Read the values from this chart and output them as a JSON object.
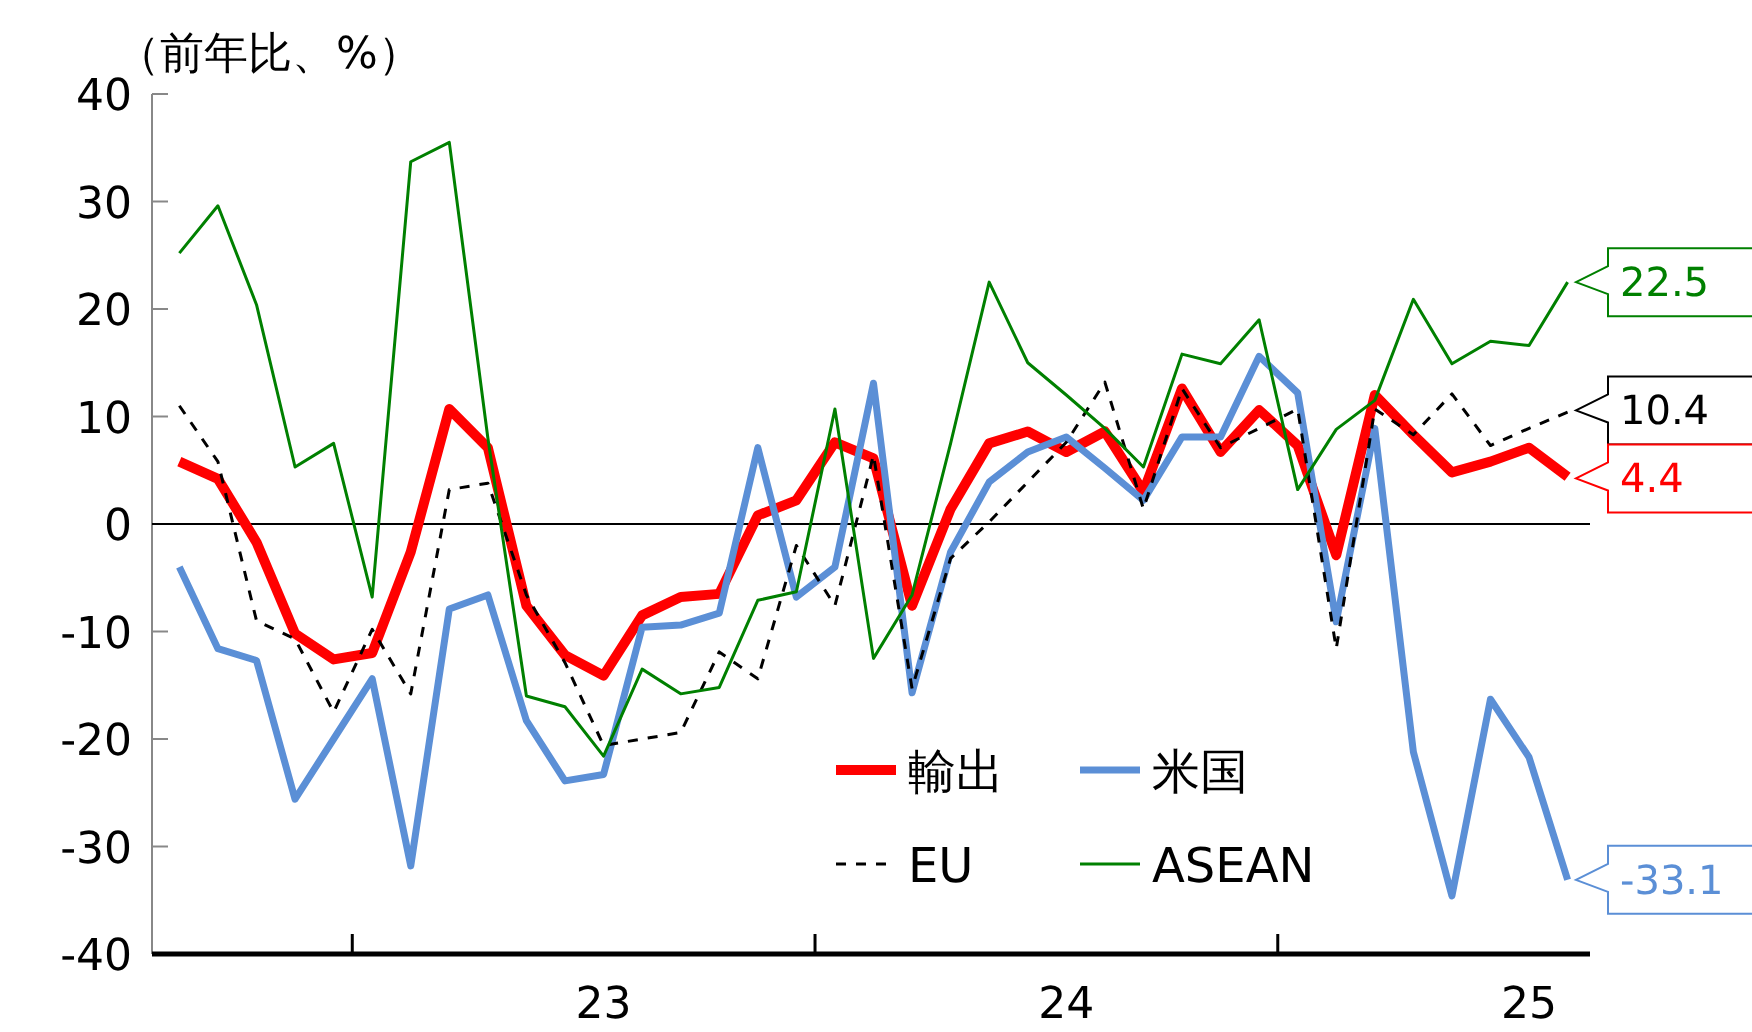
{
  "chart_data": {
    "type": "line",
    "ylabel": "（前年比、%）",
    "x": [
      "2022-08",
      "2022-09",
      "2022-10",
      "2022-11",
      "2022-12",
      "2023-01",
      "2023-02",
      "2023-03",
      "2023-04",
      "2023-05",
      "2023-06",
      "2023-07",
      "2023-08",
      "2023-09",
      "2023-10",
      "2023-11",
      "2023-12",
      "2024-01",
      "2024-02",
      "2024-03",
      "2024-04",
      "2024-05",
      "2024-06",
      "2024-07",
      "2024-08",
      "2024-09",
      "2024-10",
      "2024-11",
      "2024-12",
      "2025-01",
      "2025-02",
      "2025-03",
      "2025-04",
      "2025-05",
      "2025-06",
      "2025-07",
      "2025-08"
    ],
    "series": [
      {
        "name": "輸出",
        "color": "#ff0000",
        "line_style": "solid",
        "values": [
          5.8,
          4.2,
          -1.7,
          -10.2,
          -12.6,
          -12.0,
          -2.6,
          10.7,
          7.1,
          -7.6,
          -12.2,
          -14.1,
          -8.5,
          -6.8,
          -6.5,
          0.8,
          2.2,
          7.6,
          6.1,
          -7.6,
          1.4,
          7.5,
          8.6,
          6.7,
          8.6,
          3.0,
          12.6,
          6.7,
          10.6,
          7.3,
          -2.9,
          12.0,
          8.3,
          4.8,
          5.8,
          7.1,
          4.4
        ],
        "value_labels": [
          null,
          null,
          null,
          null,
          null,
          null,
          null,
          null,
          null,
          null,
          null,
          null,
          null,
          null,
          null,
          null,
          null,
          null,
          null,
          null,
          null,
          null,
          null,
          null,
          null,
          null,
          null,
          null,
          null,
          null,
          null,
          null,
          null,
          null,
          null,
          null,
          "4.4"
        ]
      },
      {
        "name": "米国",
        "color": "#5b8fd6",
        "line_style": "solid",
        "values": [
          -4.0,
          -11.6,
          -12.7,
          -25.6,
          -20.0,
          -14.4,
          -31.8,
          -7.9,
          -6.6,
          -18.3,
          -23.9,
          -23.3,
          -9.6,
          -9.4,
          -8.3,
          7.1,
          -6.8,
          -4.0,
          13.1,
          -15.7,
          -2.6,
          3.9,
          6.7,
          8.1,
          5.2,
          2.2,
          8.1,
          8.1,
          15.6,
          12.2,
          -9.1,
          8.9,
          -21.2,
          -34.6,
          -16.3,
          -21.7,
          -33.1
        ],
        "value_labels": [
          null,
          null,
          null,
          null,
          null,
          null,
          null,
          null,
          null,
          null,
          null,
          null,
          null,
          null,
          null,
          null,
          null,
          null,
          null,
          null,
          null,
          null,
          null,
          null,
          null,
          null,
          null,
          null,
          null,
          null,
          null,
          null,
          null,
          null,
          null,
          null,
          "-33.1"
        ]
      },
      {
        "name": "EU",
        "color": "#000000",
        "line_style": "dashed",
        "values": [
          11.0,
          5.8,
          -9.0,
          -10.7,
          -17.5,
          -9.8,
          -15.8,
          3.2,
          3.8,
          -6.6,
          -12.9,
          -20.6,
          -20.0,
          -19.4,
          -11.9,
          -14.4,
          -2.0,
          -7.6,
          6.4,
          -15.3,
          -3.2,
          0.2,
          3.9,
          7.6,
          13.2,
          1.4,
          12.6,
          7.1,
          8.9,
          10.7,
          -11.6,
          10.7,
          8.3,
          12.1,
          7.3,
          8.9,
          10.4
        ],
        "value_labels": [
          null,
          null,
          null,
          null,
          null,
          null,
          null,
          null,
          null,
          null,
          null,
          null,
          null,
          null,
          null,
          null,
          null,
          null,
          null,
          null,
          null,
          null,
          null,
          null,
          null,
          null,
          null,
          null,
          null,
          null,
          null,
          null,
          null,
          null,
          null,
          null,
          "10.4"
        ]
      },
      {
        "name": "ASEAN",
        "color": "#008000",
        "line_style": "solid",
        "values": [
          25.2,
          29.6,
          20.4,
          5.3,
          7.5,
          -6.8,
          33.7,
          35.5,
          8,
          -16.0,
          -17.0,
          -21.6,
          -13.5,
          -15.8,
          -15.2,
          -7.1,
          -6.3,
          10.7,
          -12.5,
          -6.6,
          7.5,
          22.5,
          15.0,
          12.0,
          8.9,
          5.3,
          15.8,
          14.9,
          19.0,
          3.2,
          8.8,
          11.5,
          20.9,
          14.9,
          17.0,
          16.6,
          22.5
        ],
        "value_labels": [
          null,
          null,
          null,
          null,
          null,
          null,
          null,
          null,
          null,
          null,
          null,
          null,
          null,
          null,
          null,
          null,
          null,
          null,
          null,
          null,
          null,
          null,
          null,
          null,
          null,
          null,
          null,
          null,
          null,
          null,
          null,
          null,
          null,
          null,
          null,
          null,
          "22.5"
        ]
      }
    ],
    "xlim": [
      "2022-07-10",
      "2025-08-19"
    ],
    "xticks": [
      {
        "value": "2022-12-16",
        "label": null
      },
      {
        "value": "2023-07-01",
        "label": "23"
      },
      {
        "value": "2023-12-16",
        "label": null
      },
      {
        "value": "2024-07-01",
        "label": "24"
      },
      {
        "value": "2024-12-16",
        "label": null
      },
      {
        "value": "2025-07-01",
        "label": "25"
      }
    ],
    "ylim": [
      -40,
      40
    ],
    "yticks": [
      -40,
      -30,
      -20,
      -10,
      0,
      10,
      20,
      30,
      40
    ],
    "ref_lines": [
      {
        "axis": "y",
        "value": 0,
        "color": "#000000"
      }
    ],
    "grid": false,
    "legend": "bottom right",
    "marker": "none"
  }
}
